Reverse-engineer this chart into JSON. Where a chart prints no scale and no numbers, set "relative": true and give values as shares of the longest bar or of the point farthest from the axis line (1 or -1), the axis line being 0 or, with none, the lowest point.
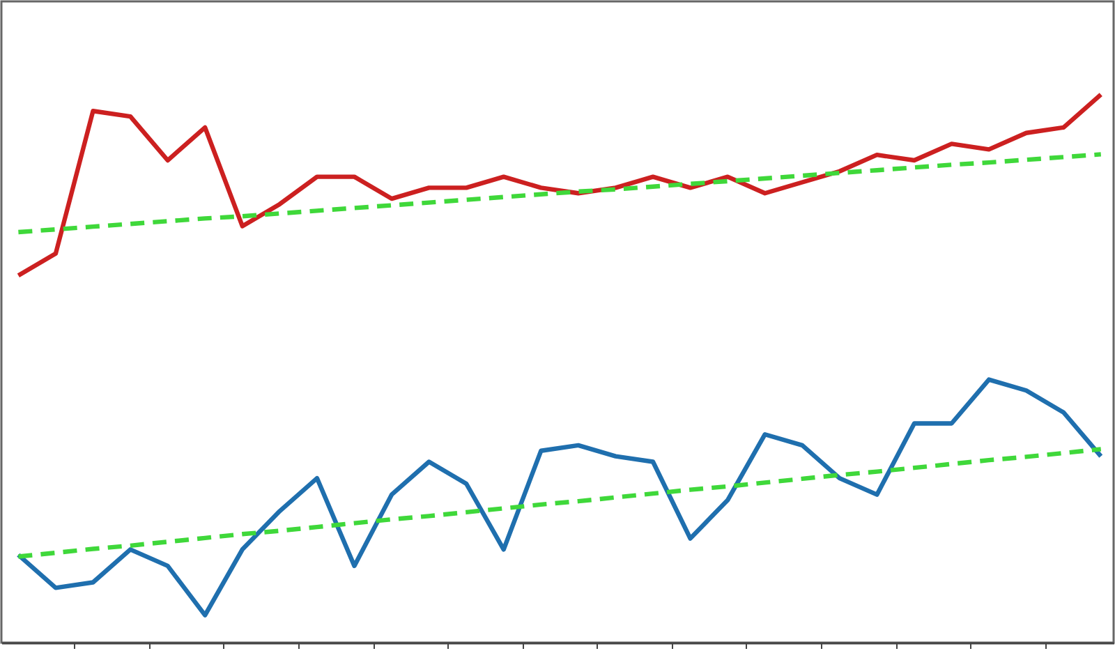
{
  "chart_data": {
    "type": "line",
    "relative": true,
    "categories": [
      null,
      null,
      null,
      null,
      null,
      null,
      null,
      null,
      null,
      null,
      null,
      null,
      null,
      null,
      null,
      null,
      null,
      null,
      null,
      null,
      null,
      null,
      null,
      null,
      null,
      null,
      null,
      null,
      null,
      null
    ],
    "tick_labels": false,
    "series": [
      {
        "color": "#cc2020",
        "values": [
          0.67,
          0.71,
          0.97,
          0.96,
          0.88,
          0.94,
          0.76,
          0.8,
          0.85,
          0.85,
          0.81,
          0.83,
          0.83,
          0.85,
          0.83,
          0.82,
          0.83,
          0.85,
          0.83,
          0.85,
          0.82,
          0.84,
          0.86,
          0.89,
          0.88,
          0.91,
          0.9,
          0.93,
          0.94,
          1.0
        ]
      },
      {
        "color": "#1f6fae",
        "values": [
          0.16,
          0.1,
          0.11,
          0.17,
          0.14,
          0.05,
          0.17,
          0.24,
          0.3,
          0.14,
          0.27,
          0.33,
          0.29,
          0.17,
          0.35,
          0.36,
          0.34,
          0.33,
          0.19,
          0.26,
          0.38,
          0.36,
          0.3,
          0.27,
          0.4,
          0.4,
          0.48,
          0.46,
          0.42,
          0.34
        ]
      },
      {
        "color": "#3fd83a",
        "line_style": "dashed",
        "values": [
          0.749,
          0.754,
          0.759,
          0.764,
          0.769,
          0.774,
          0.778,
          0.783,
          0.788,
          0.793,
          0.798,
          0.803,
          0.808,
          0.813,
          0.818,
          0.823,
          0.827,
          0.832,
          0.837,
          0.842,
          0.847,
          0.852,
          0.857,
          0.862,
          0.867,
          0.872,
          0.876,
          0.881,
          0.886,
          0.891
        ]
      },
      {
        "color": "#3fd83a",
        "line_style": "dashed",
        "values": [
          0.157,
          0.164,
          0.171,
          0.177,
          0.184,
          0.191,
          0.198,
          0.204,
          0.211,
          0.218,
          0.225,
          0.231,
          0.238,
          0.245,
          0.252,
          0.258,
          0.265,
          0.272,
          0.279,
          0.285,
          0.292,
          0.299,
          0.306,
          0.312,
          0.319,
          0.326,
          0.333,
          0.339,
          0.346,
          0.353
        ]
      }
    ]
  }
}
